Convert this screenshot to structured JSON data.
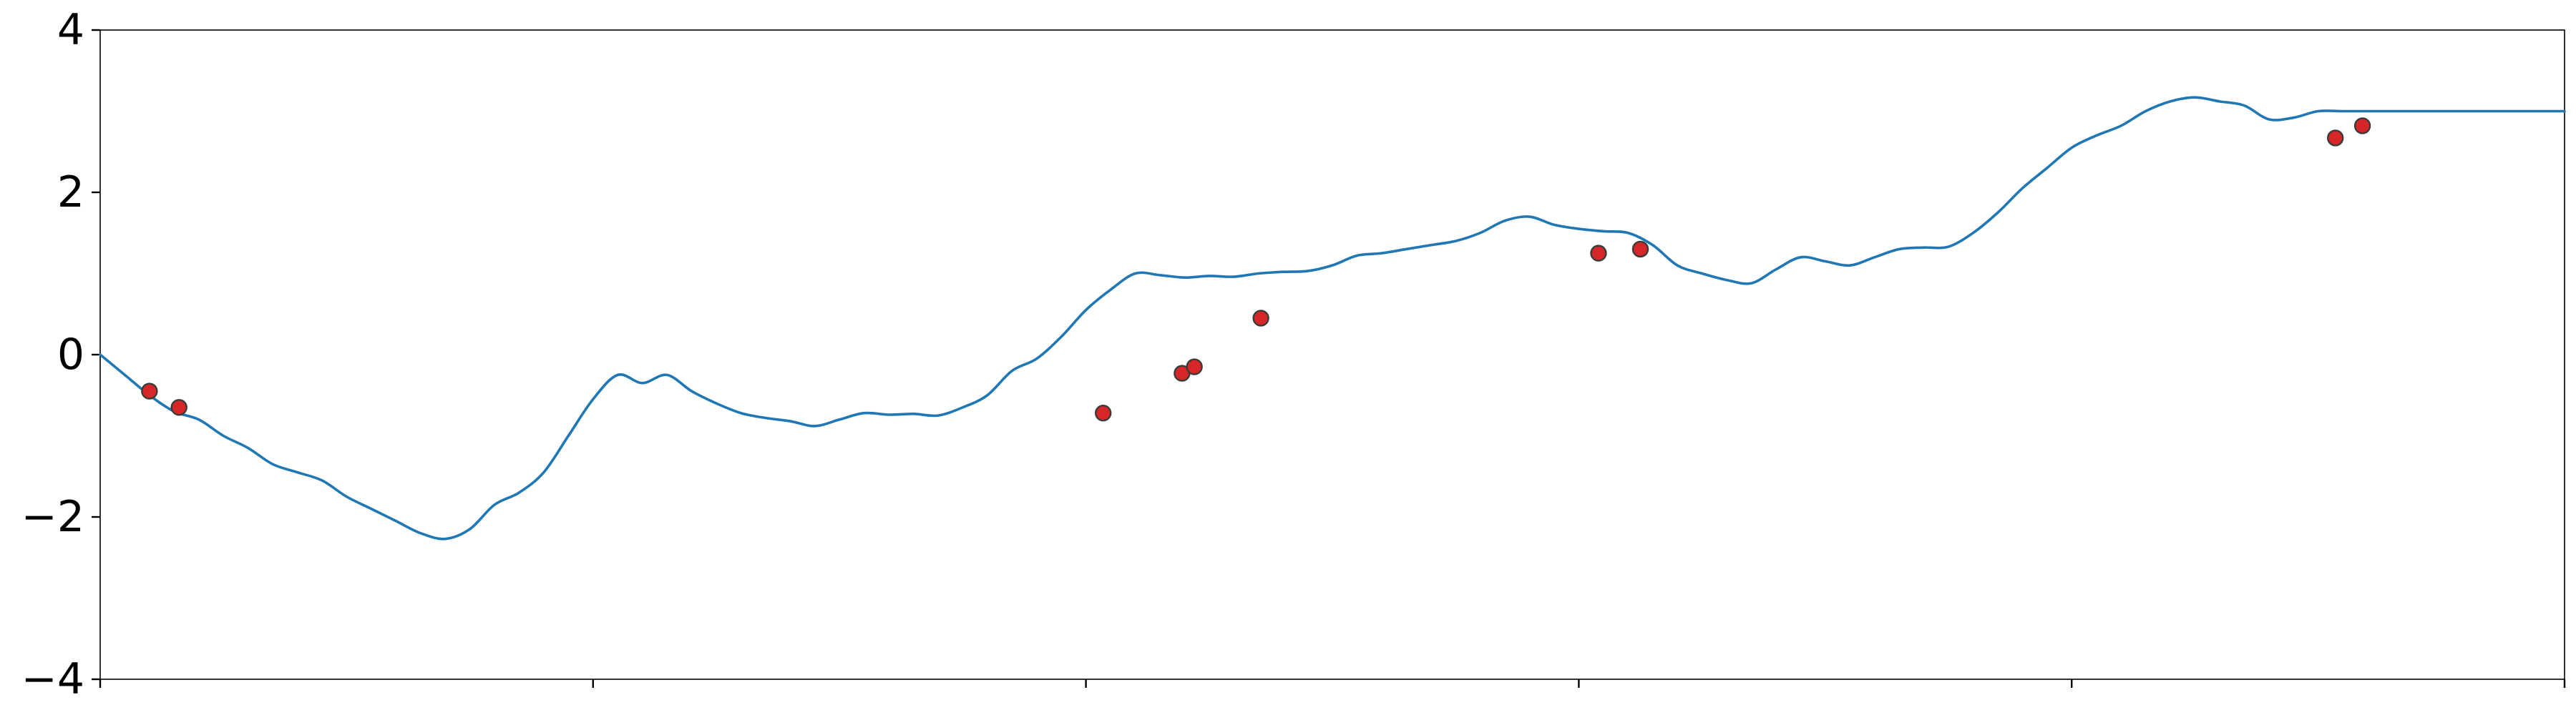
{
  "chart_data": {
    "type": "line",
    "title": "",
    "xlabel": "",
    "ylabel": "",
    "xlim": [
      0,
      1
    ],
    "ylim": [
      -4,
      4
    ],
    "y_ticks": [
      -4,
      -2,
      0,
      2,
      4
    ],
    "y_tick_labels": [
      "−4",
      "−2",
      "0",
      "2",
      "4"
    ],
    "x_ticks": [
      0,
      0.2,
      0.4,
      0.6,
      0.8,
      1.0
    ],
    "x_tick_labels": [
      "",
      "",
      "",
      "",
      "",
      ""
    ],
    "grid": false,
    "legend": "none",
    "series": [
      {
        "line_color": "#1f77b4",
        "x": [
          0,
          0.01,
          0.02,
          0.03,
          0.04,
          0.05,
          0.06,
          0.07,
          0.08,
          0.09,
          0.1,
          0.11,
          0.12,
          0.13,
          0.14,
          0.15,
          0.16,
          0.17,
          0.18,
          0.19,
          0.2,
          0.21,
          0.22,
          0.23,
          0.24,
          0.25,
          0.26,
          0.27,
          0.28,
          0.29,
          0.3,
          0.31,
          0.32,
          0.33,
          0.34,
          0.35,
          0.36,
          0.37,
          0.38,
          0.39,
          0.4,
          0.41,
          0.42,
          0.43,
          0.44,
          0.45,
          0.46,
          0.47,
          0.48,
          0.49,
          0.5,
          0.51,
          0.52,
          0.53,
          0.54,
          0.55,
          0.56,
          0.57,
          0.58,
          0.59,
          0.6,
          0.61,
          0.62,
          0.63,
          0.64,
          0.65,
          0.66,
          0.67,
          0.68,
          0.69,
          0.7,
          0.71,
          0.72,
          0.73,
          0.74,
          0.75,
          0.76,
          0.77,
          0.78,
          0.79,
          0.8,
          0.81,
          0.82,
          0.83,
          0.84,
          0.85,
          0.86,
          0.87,
          0.88,
          0.89,
          0.9,
          0.91,
          0.92,
          0.93,
          0.94,
          0.95,
          0.96,
          0.97,
          0.98,
          0.99,
          1.0
        ],
        "y": [
          0.0,
          -0.25,
          -0.5,
          -0.7,
          -0.8,
          -1.0,
          -1.15,
          -1.35,
          -1.45,
          -1.55,
          -1.75,
          -1.9,
          -2.05,
          -2.2,
          -2.27,
          -2.15,
          -1.85,
          -1.7,
          -1.45,
          -1.0,
          -0.55,
          -0.25,
          -0.35,
          -0.25,
          -0.45,
          -0.6,
          -0.72,
          -0.78,
          -0.82,
          -0.88,
          -0.8,
          -0.72,
          -0.74,
          -0.73,
          -0.75,
          -0.65,
          -0.5,
          -0.2,
          -0.05,
          0.22,
          0.55,
          0.8,
          1.0,
          0.98,
          0.95,
          0.97,
          0.96,
          1.0,
          1.02,
          1.03,
          1.1,
          1.22,
          1.25,
          1.3,
          1.35,
          1.4,
          1.5,
          1.65,
          1.7,
          1.6,
          1.55,
          1.52,
          1.5,
          1.35,
          1.1,
          1.0,
          0.92,
          0.88,
          1.05,
          1.2,
          1.15,
          1.1,
          1.2,
          1.3,
          1.32,
          1.33,
          1.5,
          1.75,
          2.05,
          2.3,
          2.55,
          2.7,
          2.82,
          3.0,
          3.12,
          3.17,
          3.12,
          3.07,
          2.9,
          2.92,
          3.0,
          3.0,
          3.0,
          3.0,
          3.0,
          3.0,
          3.0,
          3.0,
          3.0,
          3.0,
          3.0
        ]
      }
    ],
    "points": {
      "marker_fill": "#d62728",
      "marker_edge": "#3a3a3a",
      "x": [
        0.02,
        0.032,
        0.407,
        0.439,
        0.444,
        0.471,
        0.608,
        0.625,
        0.907,
        0.918
      ],
      "y": [
        -0.45,
        -0.65,
        -0.72,
        -0.23,
        -0.15,
        0.45,
        1.25,
        1.3,
        2.67,
        2.82
      ]
    }
  }
}
